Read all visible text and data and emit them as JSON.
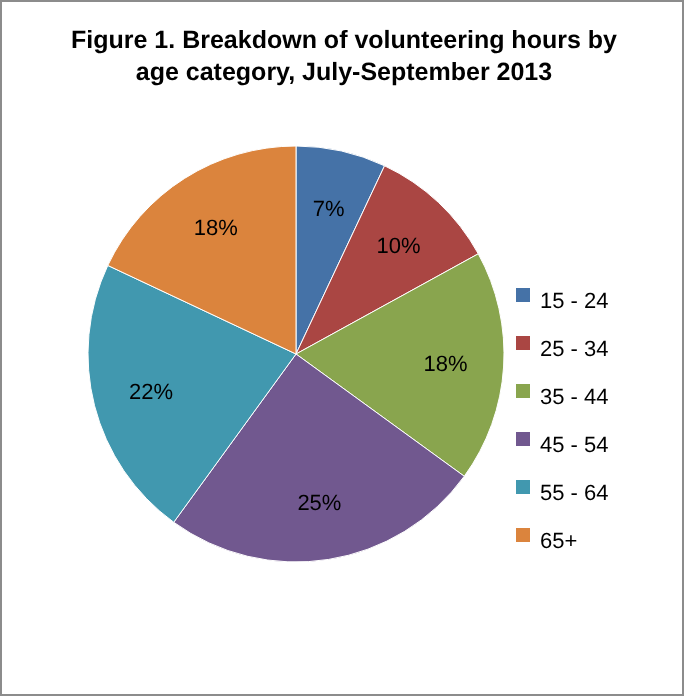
{
  "chart_data": {
    "type": "pie",
    "title": "Figure 1. Breakdown of volunteering hours by age category, July-September 2013",
    "categories": [
      "15 - 24",
      "25 - 34",
      "35 - 44",
      "45 - 54",
      "55 - 64",
      "65+"
    ],
    "values": [
      7,
      10,
      18,
      25,
      22,
      18
    ],
    "colors": [
      "#4572a7",
      "#aa4643",
      "#89a54e",
      "#71588f",
      "#4198af",
      "#db843d"
    ],
    "value_labels": [
      "7%",
      "10%",
      "18%",
      "25%",
      "22%",
      "18%"
    ],
    "legend": "right"
  }
}
